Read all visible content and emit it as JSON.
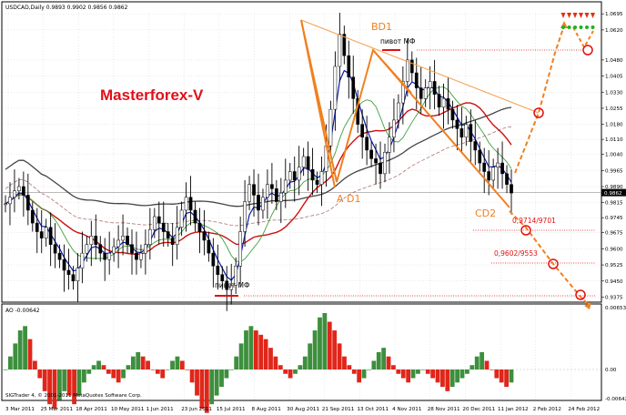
{
  "header": {
    "symbol_line": "USDCAD,Daily  0.9893 0.9902 0.9856 0.9862",
    "ao_label": "AO -0.00642",
    "copyright": "SIGTrader 4, © 2001-2011 MetaQuotes Software Corp."
  },
  "brand": "Masterforex-V",
  "annotations": {
    "bd1": "BD1",
    "ad1": "A D1",
    "cd2": "CD2",
    "pivot_top": "пивот МФ",
    "pivot_bottom": "пивот МФ",
    "target1": "0,9714/9701",
    "target2": "0,9602/9553"
  },
  "colors": {
    "background": "#ffffff",
    "up_bar": "#3d8f3d",
    "down_bar": "#e0261a",
    "ma_blue": "#0a1aa8",
    "ma_red": "#cc1010",
    "ma_green": "#40a040",
    "ma_gray": "#555555",
    "orange": "#f08020",
    "pivot_red": "#e01010",
    "brand_red": "#e0101a",
    "price_marker": "#000000"
  },
  "chart_data": [
    {
      "type": "candlestick",
      "title": "USDCAD,Daily",
      "x_tick_labels": [
        "3 Mar 2011",
        "25 Mar 2011",
        "18 Apr 2011",
        "10 May 2011",
        "1 Jun 2011",
        "23 Jun 2011",
        "15 Jul 2011",
        "8 Aug 2011",
        "30 Aug 2011",
        "21 Sep 2011",
        "13 Oct 2011",
        "4 Nov 2011",
        "28 Nov 2011",
        "20 Dec 2011",
        "11 Jan 2012",
        "2 Feb 2012",
        "24 Feb 2012"
      ],
      "y_tick_labels": [
        "1.0695",
        "1.0620",
        "1.0480",
        "1.0405",
        "1.0330",
        "1.0255",
        "1.0180",
        "1.0110",
        "1.0040",
        "0.9965",
        "0.9890",
        "0.9862",
        "0.9815",
        "0.9745",
        "0.9675",
        "0.9600",
        "0.9525",
        "0.9450",
        "0.9375"
      ],
      "ylim": [
        0.936,
        1.07
      ],
      "current_price": 0.9862,
      "close": [
        0.981,
        0.984,
        0.987,
        0.989,
        0.985,
        0.978,
        0.972,
        0.968,
        0.965,
        0.97,
        0.962,
        0.958,
        0.955,
        0.95,
        0.948,
        0.945,
        0.951,
        0.958,
        0.962,
        0.966,
        0.962,
        0.958,
        0.955,
        0.958,
        0.961,
        0.964,
        0.966,
        0.962,
        0.958,
        0.955,
        0.958,
        0.962,
        0.969,
        0.975,
        0.972,
        0.968,
        0.965,
        0.962,
        0.97,
        0.978,
        0.984,
        0.978,
        0.972,
        0.968,
        0.964,
        0.958,
        0.952,
        0.948,
        0.945,
        0.941,
        0.943,
        0.952,
        0.968,
        0.982,
        0.99,
        0.985,
        0.978,
        0.984,
        0.99,
        0.988,
        0.982,
        0.986,
        0.992,
        0.996,
        0.992,
        0.998,
        1.003,
        0.997,
        0.992,
        0.99,
        0.996,
        1.008,
        1.025,
        1.045,
        1.06,
        1.05,
        1.04,
        1.03,
        1.018,
        1.012,
        1.006,
        1.002,
        1.0,
        0.995,
        1.005,
        1.012,
        1.02,
        1.028,
        1.038,
        1.048,
        1.042,
        1.035,
        1.03,
        1.035,
        1.038,
        1.032,
        1.026,
        1.03,
        1.025,
        1.02,
        1.016,
        1.012,
        1.018,
        1.01,
        1.006,
        1.0,
        0.996,
        0.992,
        0.998,
        1.0,
        0.995,
        0.99,
        0.986
      ]
    },
    {
      "type": "bar",
      "title": "AO -0.00642",
      "y_tick_labels": [
        "0.00653",
        "0.00",
        "-0.00642"
      ],
      "zero_line": 0,
      "values": [
        0.0,
        0.3,
        0.6,
        0.9,
        1.0,
        0.7,
        0.2,
        -0.2,
        -0.5,
        -0.8,
        -0.9,
        -0.7,
        -0.5,
        -0.6,
        -0.8,
        -0.6,
        -0.3,
        -0.1,
        0.1,
        0.2,
        0.1,
        -0.1,
        -0.2,
        -0.3,
        -0.2,
        0.1,
        0.3,
        0.4,
        0.3,
        0.2,
        0.0,
        -0.1,
        -0.2,
        0.0,
        0.2,
        0.3,
        0.2,
        0.0,
        -0.3,
        -0.6,
        -0.9,
        -1.0,
        -0.8,
        -0.6,
        -0.4,
        -0.2,
        0.0,
        0.3,
        0.6,
        0.9,
        1.0,
        0.9,
        0.8,
        0.7,
        0.5,
        0.3,
        0.1,
        -0.1,
        -0.2,
        -0.1,
        0.1,
        0.3,
        0.6,
        0.9,
        1.2,
        1.3,
        1.1,
        0.9,
        0.6,
        0.3,
        0.1,
        -0.1,
        -0.3,
        -0.2,
        0.0,
        0.2,
        0.4,
        0.5,
        0.3,
        0.1,
        -0.1,
        -0.2,
        -0.3,
        -0.2,
        -0.1,
        0.0,
        -0.1,
        -0.2,
        -0.3,
        -0.4,
        -0.5,
        -0.4,
        -0.3,
        -0.2,
        -0.1,
        0.1,
        0.3,
        0.4,
        0.2,
        0.0,
        -0.2,
        -0.3,
        -0.4,
        -0.3
      ]
    }
  ]
}
